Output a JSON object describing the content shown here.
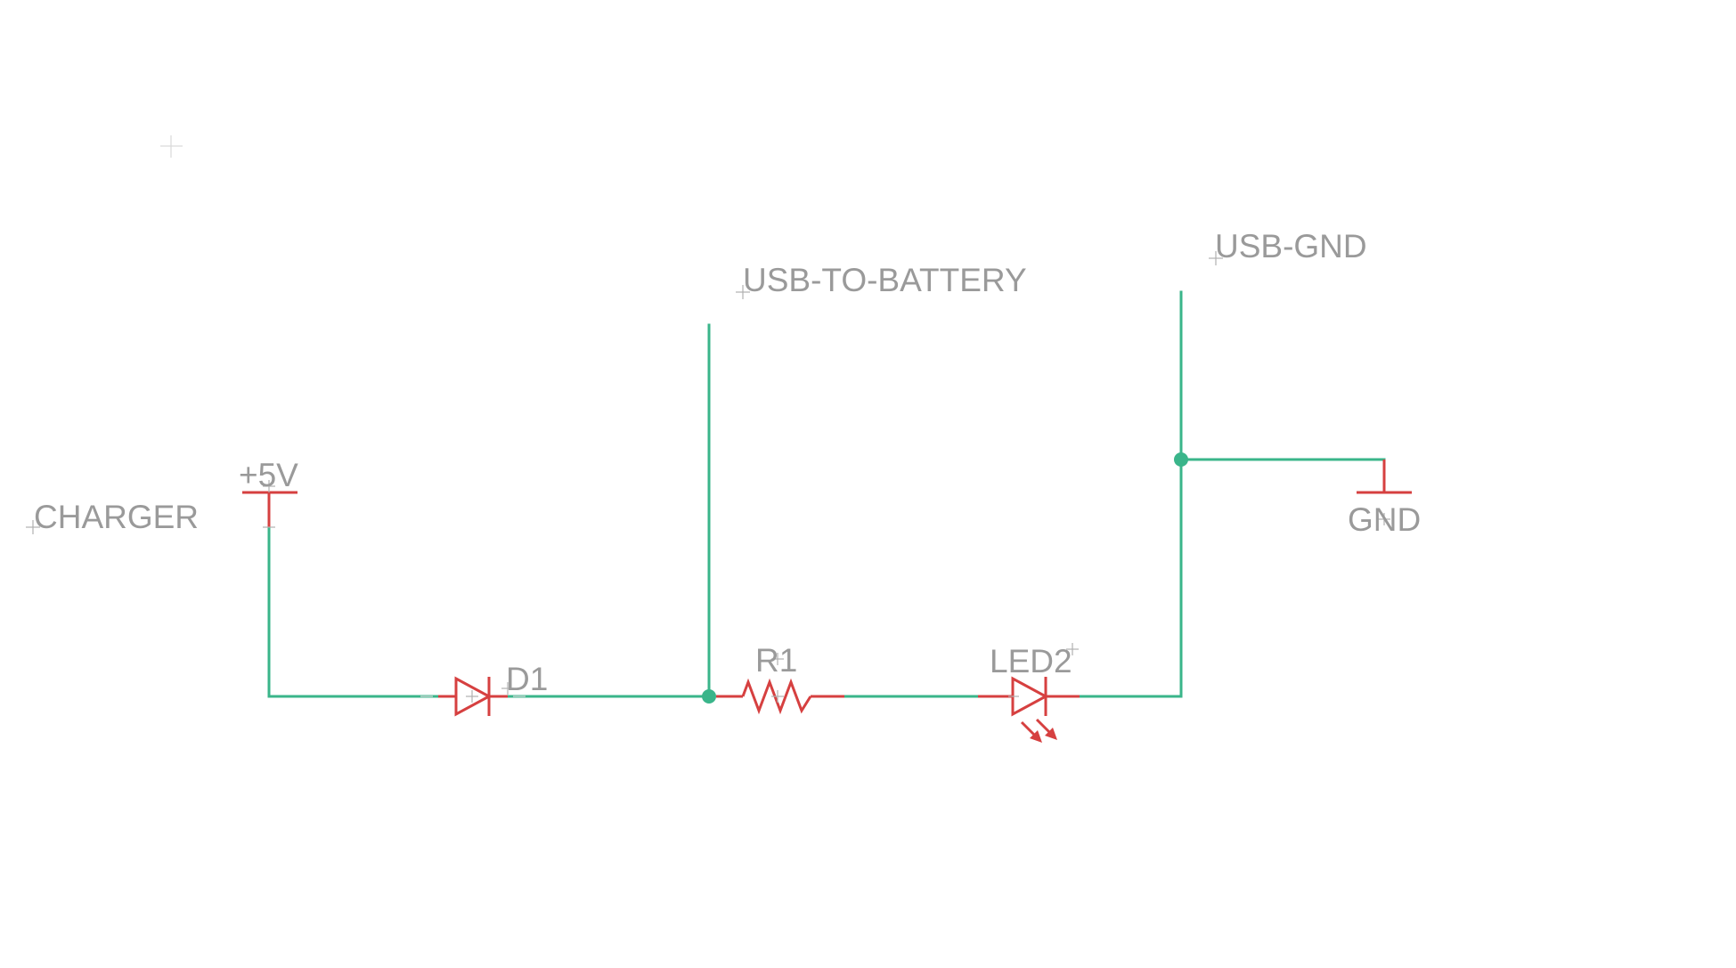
{
  "schematic": {
    "net_labels": {
      "charger": "CHARGER",
      "usb_to_battery": "USB-TO-BATTERY",
      "usb_gnd": "USB-GND"
    },
    "supplies": {
      "plus5v": "+5V",
      "gnd": "GND"
    },
    "parts": {
      "d1": "D1",
      "r1": "R1",
      "led2": "LED2"
    },
    "colors": {
      "wire": "#3ab58a",
      "part": "#d64040",
      "text": "#9a9a9a"
    }
  }
}
